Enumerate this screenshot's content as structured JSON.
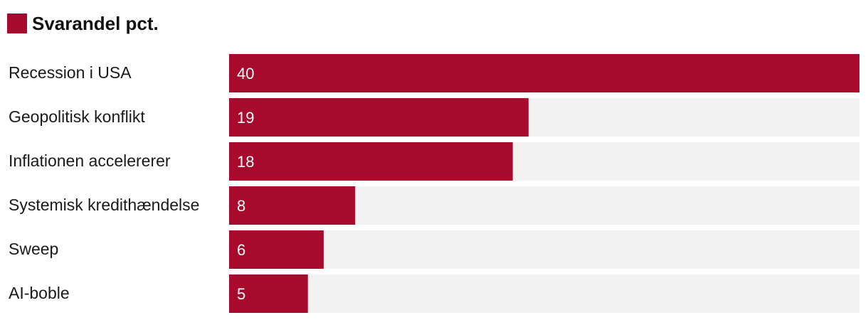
{
  "chart_data": {
    "type": "bar",
    "orientation": "horizontal",
    "categories": [
      "Recession i USA",
      "Geopolitisk konflikt",
      "Inflationen accelererer",
      "Systemisk kredithændelse",
      "Sweep",
      "AI-boble"
    ],
    "series": [
      {
        "name": "Svarandel pct.",
        "values": [
          40,
          19,
          18,
          8,
          6,
          5
        ]
      }
    ],
    "xlim": [
      0,
      40
    ],
    "data_labels": true,
    "legend_position": "top-left",
    "grid": false,
    "colors": {
      "bar": "#a70a2d",
      "track": "#f2f2f2",
      "value_text": "#ffffff"
    }
  }
}
